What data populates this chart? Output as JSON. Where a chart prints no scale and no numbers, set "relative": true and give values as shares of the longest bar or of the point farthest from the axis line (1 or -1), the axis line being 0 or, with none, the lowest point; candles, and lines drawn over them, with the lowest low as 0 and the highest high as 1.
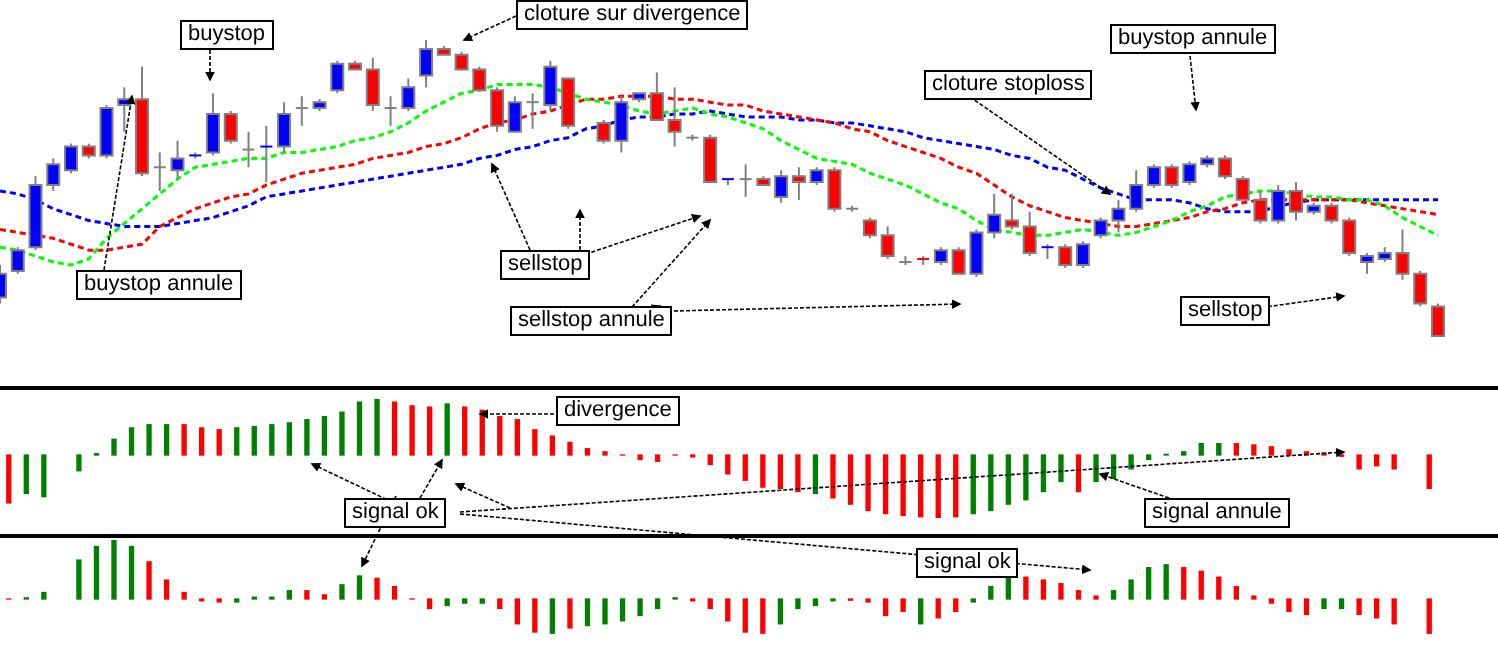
{
  "chart_data": [
    {
      "type": "candlestick",
      "relative": true,
      "line_style": "dashed",
      "categories": [
        null,
        null,
        null,
        null,
        null,
        null,
        null,
        null,
        null,
        null,
        null,
        null,
        null,
        null,
        null,
        null,
        null,
        null,
        null,
        null,
        null,
        null,
        null,
        null,
        null,
        null,
        null,
        null,
        null,
        null,
        null,
        null,
        null,
        null,
        null,
        null,
        null,
        null,
        null,
        null,
        null,
        null,
        null,
        null,
        null,
        null,
        null,
        null,
        null,
        null,
        null,
        null,
        null,
        null,
        null,
        null,
        null,
        null,
        null,
        null,
        null,
        null,
        null,
        null,
        null,
        null,
        null,
        null,
        null,
        null,
        null,
        null,
        null,
        null,
        null,
        null,
        null,
        null,
        null,
        null,
        null,
        null
      ],
      "ohlc": [
        [
          0.13,
          0.24,
          0.11,
          0.21
        ],
        [
          0.22,
          0.3,
          0.21,
          0.29
        ],
        [
          0.3,
          0.54,
          0.29,
          0.51
        ],
        [
          0.51,
          0.6,
          0.49,
          0.58
        ],
        [
          0.56,
          0.65,
          0.55,
          0.64
        ],
        [
          0.64,
          0.65,
          0.6,
          0.61
        ],
        [
          0.61,
          0.78,
          0.6,
          0.77
        ],
        [
          0.78,
          0.84,
          0.69,
          0.8
        ],
        [
          0.8,
          0.91,
          0.54,
          0.55
        ],
        [
          0.57,
          0.62,
          0.49,
          0.57
        ],
        [
          0.56,
          0.66,
          0.53,
          0.6
        ],
        [
          0.6,
          0.62,
          0.6,
          0.61
        ],
        [
          0.62,
          0.82,
          0.61,
          0.75
        ],
        [
          0.75,
          0.76,
          0.65,
          0.66
        ],
        [
          0.62,
          0.69,
          0.57,
          0.63
        ],
        [
          0.63,
          0.71,
          0.52,
          0.64
        ],
        [
          0.64,
          0.79,
          0.62,
          0.75
        ],
        [
          0.76,
          0.81,
          0.71,
          0.77
        ],
        [
          0.77,
          0.8,
          0.76,
          0.79
        ],
        [
          0.83,
          0.93,
          0.82,
          0.92
        ],
        [
          0.92,
          0.93,
          0.9,
          0.9
        ],
        [
          0.9,
          0.94,
          0.76,
          0.78
        ],
        [
          0.76,
          0.81,
          0.71,
          0.77
        ],
        [
          0.77,
          0.87,
          0.76,
          0.84
        ],
        [
          0.88,
          1,
          0.84,
          0.97
        ],
        [
          0.97,
          0.98,
          0.95,
          0.95
        ],
        [
          0.95,
          0.96,
          0.9,
          0.9
        ],
        [
          0.9,
          0.91,
          0.83,
          0.83
        ],
        [
          0.83,
          0.84,
          0.69,
          0.71
        ],
        [
          0.69,
          0.81,
          0.69,
          0.79
        ],
        [
          0.78,
          0.82,
          0.7,
          0.79
        ],
        [
          0.78,
          0.93,
          0.76,
          0.91
        ],
        [
          0.87,
          0.87,
          0.7,
          0.71
        ],
        null,
        [
          0.72,
          0.73,
          0.65,
          0.66
        ],
        [
          0.66,
          0.81,
          0.62,
          0.79
        ],
        [
          0.8,
          0.82,
          0.79,
          0.82
        ],
        [
          0.82,
          0.89,
          0.73,
          0.73
        ],
        [
          0.73,
          0.84,
          0.64,
          0.69
        ],
        [
          0.67,
          0.68,
          0.66,
          0.67
        ],
        [
          0.67,
          0.68,
          0.52,
          0.52
        ],
        [
          0.52,
          0.53,
          0.51,
          0.53
        ],
        [
          0.53,
          0.58,
          0.47,
          0.53
        ],
        [
          0.53,
          0.54,
          0.51,
          0.51
        ],
        [
          0.47,
          0.56,
          0.45,
          0.54
        ],
        [
          0.54,
          0.57,
          0.46,
          0.52
        ],
        [
          0.52,
          0.57,
          0.51,
          0.56
        ],
        [
          0.56,
          0.57,
          0.42,
          0.43
        ],
        [
          0.43,
          0.44,
          0.42,
          0.43
        ],
        [
          0.39,
          0.4,
          0.33,
          0.34
        ],
        [
          0.34,
          0.37,
          0.26,
          0.27
        ],
        [
          0.25,
          0.27,
          0.24,
          0.25
        ],
        [
          0.26,
          0.27,
          0.24,
          0.25
        ],
        [
          0.25,
          0.3,
          0.24,
          0.29
        ],
        [
          0.29,
          0.3,
          0.21,
          0.21
        ],
        [
          0.21,
          0.36,
          0.2,
          0.35
        ],
        [
          0.35,
          0.48,
          0.33,
          0.41
        ],
        [
          0.39,
          0.48,
          0.36,
          0.37
        ],
        [
          0.37,
          0.42,
          0.27,
          0.28
        ],
        [
          0.29,
          0.31,
          0.26,
          0.3
        ],
        [
          0.3,
          0.31,
          0.23,
          0.24
        ],
        [
          0.24,
          0.32,
          0.23,
          0.31
        ],
        [
          0.34,
          0.4,
          0.33,
          0.39
        ],
        [
          0.39,
          0.46,
          0.35,
          0.43
        ],
        [
          0.43,
          0.56,
          0.42,
          0.51
        ],
        [
          0.51,
          0.58,
          0.5,
          0.57
        ],
        [
          0.57,
          0.58,
          0.5,
          0.51
        ],
        [
          0.52,
          0.59,
          0.51,
          0.58
        ],
        [
          0.58,
          0.61,
          0.57,
          0.6
        ],
        [
          0.6,
          0.61,
          0.53,
          0.54
        ],
        [
          0.53,
          0.54,
          0.46,
          0.46
        ],
        [
          0.46,
          0.49,
          0.38,
          0.39
        ],
        [
          0.39,
          0.51,
          0.38,
          0.49
        ],
        [
          0.49,
          0.52,
          0.39,
          0.42
        ],
        [
          0.42,
          0.45,
          0.41,
          0.44
        ],
        [
          0.44,
          0.45,
          0.38,
          0.39
        ],
        [
          0.39,
          0.4,
          0.27,
          0.28
        ],
        [
          0.25,
          0.28,
          0.21,
          0.27
        ],
        [
          0.26,
          0.3,
          0.25,
          0.28
        ],
        [
          0.28,
          0.36,
          0.19,
          0.21
        ],
        [
          0.21,
          0.22,
          0.1,
          0.11
        ],
        [
          0.1,
          0.11,
          0,
          0
        ]
      ],
      "colors": [
        "#0000ff",
        "#0000ff",
        "#0000ff",
        "#0000ff",
        "#0000ff",
        "#ff0000",
        "#0000ff",
        "#0000ff",
        "#ff0000",
        "#808080",
        "#0000ff",
        "#0000ff",
        "#0000ff",
        "#ff0000",
        "#808080",
        "#0000ff",
        "#0000ff",
        "#808080",
        "#0000ff",
        "#0000ff",
        "#ff0000",
        "#ff0000",
        "#808080",
        "#0000ff",
        "#0000ff",
        "#ff0000",
        "#ff0000",
        "#ff0000",
        "#ff0000",
        "#0000ff",
        "#808080",
        "#0000ff",
        "#ff0000",
        null,
        "#ff0000",
        "#0000ff",
        "#0000ff",
        "#ff0000",
        "#ff0000",
        "#808080",
        "#ff0000",
        "#0000ff",
        "#808080",
        "#ff0000",
        "#0000ff",
        "#ff0000",
        "#0000ff",
        "#ff0000",
        "#808080",
        "#ff0000",
        "#ff0000",
        "#808080",
        "#ff0000",
        "#0000ff",
        "#ff0000",
        "#0000ff",
        "#0000ff",
        "#ff0000",
        "#ff0000",
        "#0000ff",
        "#ff0000",
        "#0000ff",
        "#0000ff",
        "#0000ff",
        "#0000ff",
        "#0000ff",
        "#ff0000",
        "#0000ff",
        "#0000ff",
        "#ff0000",
        "#ff0000",
        "#ff0000",
        "#0000ff",
        "#ff0000",
        "#0000ff",
        "#ff0000",
        "#ff0000",
        "#0000ff",
        "#0000ff",
        "#ff0000",
        "#ff0000",
        "#ff0000"
      ],
      "series": [
        {
          "type": "line",
          "color": "#00ff00",
          "values": [
            0.3,
            0.29,
            0.27,
            0.25,
            0.24,
            0.26,
            0.33,
            0.38,
            0.43,
            0.48,
            0.53,
            0.57,
            0.58,
            0.59,
            0.6,
            0.6,
            0.62,
            0.62,
            0.63,
            0.64,
            0.66,
            0.67,
            0.69,
            0.72,
            0.76,
            0.79,
            0.82,
            0.83,
            0.85,
            0.85,
            0.85,
            0.84,
            0.82,
            0.8,
            0.79,
            0.78,
            0.76,
            0.75,
            0.76,
            0.77,
            0.75,
            0.74,
            0.72,
            0.7,
            0.66,
            0.63,
            0.6,
            0.59,
            0.58,
            0.55,
            0.53,
            0.51,
            0.48,
            0.45,
            0.43,
            0.39,
            0.36,
            0.35,
            0.34,
            0.34,
            0.35,
            0.36,
            0.35,
            0.34,
            0.35,
            0.37,
            0.39,
            0.42,
            0.44,
            0.47,
            0.48,
            0.49,
            0.49,
            0.48,
            0.47,
            0.47,
            0.46,
            0.46,
            0.44,
            0.4,
            0.37,
            0.34
          ]
        },
        {
          "type": "line",
          "color": "#ff0000",
          "values": [
            0.36,
            0.35,
            0.34,
            0.33,
            0.31,
            0.29,
            0.29,
            0.3,
            0.31,
            0.37,
            0.4,
            0.43,
            0.45,
            0.47,
            0.48,
            0.51,
            0.53,
            0.55,
            0.56,
            0.57,
            0.58,
            0.6,
            0.61,
            0.62,
            0.64,
            0.65,
            0.67,
            0.7,
            0.72,
            0.73,
            0.75,
            0.76,
            0.78,
            0.8,
            0.8,
            0.81,
            0.81,
            0.81,
            0.8,
            0.8,
            0.79,
            0.78,
            0.78,
            0.76,
            0.75,
            0.74,
            0.73,
            0.72,
            0.7,
            0.69,
            0.66,
            0.64,
            0.62,
            0.6,
            0.57,
            0.55,
            0.51,
            0.47,
            0.44,
            0.42,
            0.4,
            0.39,
            0.38,
            0.37,
            0.37,
            0.38,
            0.39,
            0.4,
            0.42,
            0.43,
            0.45,
            0.46,
            0.46,
            0.46,
            0.46,
            0.46,
            0.46,
            0.45,
            0.44,
            0.43,
            0.42,
            0.41
          ]
        },
        {
          "type": "line",
          "color": "#0000ff",
          "values": [
            0.49,
            0.48,
            0.46,
            0.43,
            0.41,
            0.39,
            0.38,
            0.37,
            0.37,
            0.37,
            0.38,
            0.39,
            0.4,
            0.42,
            0.44,
            0.47,
            0.48,
            0.49,
            0.5,
            0.51,
            0.52,
            0.53,
            0.54,
            0.55,
            0.56,
            0.57,
            0.58,
            0.6,
            0.61,
            0.63,
            0.64,
            0.66,
            0.67,
            0.7,
            0.71,
            0.73,
            0.74,
            0.74,
            0.75,
            0.75,
            0.76,
            0.75,
            0.74,
            0.74,
            0.74,
            0.73,
            0.73,
            0.72,
            0.72,
            0.71,
            0.7,
            0.69,
            0.67,
            0.66,
            0.65,
            0.64,
            0.63,
            0.61,
            0.6,
            0.57,
            0.56,
            0.53,
            0.5,
            0.48,
            0.46,
            0.46,
            0.46,
            0.45,
            0.43,
            0.42,
            0.42,
            0.42,
            0.44,
            0.45,
            0.46,
            0.46,
            0.46,
            0.46,
            0.46,
            0.46,
            0.46,
            0.46
          ]
        }
      ],
      "annotations": [
        "buystop",
        "buystop annule",
        "cloture sur divergence",
        "sellstop",
        "sellstop annule",
        "buystop annule",
        "cloture stoploss",
        "sellstop"
      ]
    },
    {
      "type": "bar",
      "relative": true,
      "categories": [
        null,
        null,
        null,
        null,
        null,
        null,
        null,
        null,
        null,
        null,
        null,
        null,
        null,
        null,
        null,
        null,
        null,
        null,
        null,
        null,
        null,
        null,
        null,
        null,
        null,
        null,
        null,
        null,
        null,
        null,
        null,
        null,
        null,
        null,
        null,
        null,
        null,
        null,
        null,
        null,
        null,
        null,
        null,
        null,
        null,
        null,
        null,
        null,
        null,
        null,
        null,
        null,
        null,
        null,
        null,
        null,
        null,
        null,
        null,
        null,
        null,
        null,
        null,
        null,
        null,
        null,
        null,
        null,
        null,
        null,
        null,
        null,
        null,
        null,
        null,
        null,
        null,
        null,
        null,
        null,
        null,
        null
      ],
      "values": [
        -0.76,
        -0.61,
        -0.66,
        null,
        -0.25,
        0.02,
        0.25,
        0.43,
        0.48,
        0.48,
        0.48,
        0.43,
        0.4,
        0.43,
        0.45,
        0.48,
        0.51,
        0.56,
        0.61,
        0.68,
        0.84,
        0.88,
        0.84,
        0.78,
        0.76,
        0.81,
        0.76,
        0.71,
        0.61,
        0.56,
        0.4,
        0.3,
        0.2,
        0.1,
        0.05,
        0,
        -0.07,
        -0.1,
        0,
        -0.03,
        -0.15,
        -0.3,
        -0.4,
        -0.51,
        -0.53,
        -0.58,
        -0.61,
        -0.68,
        -0.78,
        -0.88,
        -0.93,
        -0.96,
        -0.98,
        -1,
        -0.98,
        -0.93,
        -0.88,
        -0.78,
        -0.71,
        -0.58,
        -0.42,
        -0.58,
        -0.42,
        -0.37,
        -0.22,
        -0.07,
        0.01,
        0.05,
        0.18,
        0.18,
        0.18,
        0.16,
        0.13,
        0.08,
        0.05,
        0.03,
        -0.02,
        -0.22,
        -0.17,
        -0.22,
        null,
        -0.53
      ],
      "colors": [
        "#ff0000",
        "#008000",
        "#008000",
        null,
        "#008000",
        "#008000",
        "#008000",
        "#008000",
        "#008000",
        "#008000",
        "#ff0000",
        "#ff0000",
        "#ff0000",
        "#008000",
        "#008000",
        "#008000",
        "#008000",
        "#008000",
        "#008000",
        "#008000",
        "#008000",
        "#008000",
        "#ff0000",
        "#ff0000",
        "#ff0000",
        "#008000",
        "#ff0000",
        "#ff0000",
        "#ff0000",
        "#ff0000",
        "#ff0000",
        "#ff0000",
        "#ff0000",
        "#ff0000",
        "#ff0000",
        "#ff0000",
        "#ff0000",
        "#ff0000",
        "#ff0000",
        "#ff0000",
        "#ff0000",
        "#ff0000",
        "#ff0000",
        "#ff0000",
        "#ff0000",
        "#ff0000",
        "#008000",
        "#ff0000",
        "#ff0000",
        "#ff0000",
        "#ff0000",
        "#ff0000",
        "#ff0000",
        "#ff0000",
        "#ff0000",
        "#008000",
        "#008000",
        "#008000",
        "#008000",
        "#008000",
        "#008000",
        "#ff0000",
        "#008000",
        "#008000",
        "#008000",
        "#008000",
        "#008000",
        "#008000",
        "#008000",
        "#008000",
        "#ff0000",
        "#ff0000",
        "#ff0000",
        "#ff0000",
        "#ff0000",
        "#ff0000",
        "#ff0000",
        "#ff0000",
        "#ff0000",
        "#ff0000",
        null,
        "#ff0000"
      ],
      "annotations": [
        "divergence",
        "signal ok",
        "signal annule"
      ]
    },
    {
      "type": "bar",
      "relative": true,
      "categories": [
        null,
        null,
        null,
        null,
        null,
        null,
        null,
        null,
        null,
        null,
        null,
        null,
        null,
        null,
        null,
        null,
        null,
        null,
        null,
        null,
        null,
        null,
        null,
        null,
        null,
        null,
        null,
        null,
        null,
        null,
        null,
        null,
        null,
        null,
        null,
        null,
        null,
        null,
        null,
        null,
        null,
        null,
        null,
        null,
        null,
        null,
        null,
        null,
        null,
        null,
        null,
        null,
        null,
        null,
        null,
        null,
        null,
        null,
        null,
        null,
        null,
        null,
        null,
        null,
        null,
        null,
        null,
        null,
        null,
        null,
        null,
        null,
        null,
        null,
        null,
        null,
        null,
        null,
        null,
        null,
        null,
        null
      ],
      "values": [
        0,
        0.02,
        0.11,
        null,
        0.66,
        0.89,
        1,
        0.89,
        0.63,
        0.32,
        0.11,
        -0.03,
        -0.05,
        -0.05,
        0.03,
        0.03,
        0.14,
        0.14,
        0.07,
        0.24,
        0.39,
        0.35,
        0.21,
        0,
        -0.16,
        -0.11,
        -0.07,
        -0.07,
        -0.16,
        -0.42,
        -0.56,
        -0.58,
        -0.49,
        -0.45,
        -0.42,
        -0.37,
        -0.28,
        -0.16,
        0.02,
        -0.03,
        -0.16,
        -0.37,
        -0.56,
        -0.58,
        -0.42,
        -0.16,
        -0.11,
        -0.03,
        -0.02,
        -0.05,
        -0.28,
        -0.21,
        -0.42,
        -0.32,
        -0.21,
        -0.05,
        0.21,
        0.37,
        0.37,
        0.32,
        0.26,
        0.14,
        0.05,
        0.14,
        0.32,
        0.53,
        0.58,
        0.53,
        0.47,
        0.37,
        0.21,
        0.05,
        -0.07,
        -0.21,
        -0.26,
        -0.16,
        -0.16,
        -0.26,
        -0.32,
        -0.42,
        null,
        -0.58
      ],
      "colors": [
        "#ff0000",
        "#008000",
        "#008000",
        null,
        "#008000",
        "#008000",
        "#008000",
        "#008000",
        "#ff0000",
        "#ff0000",
        "#ff0000",
        "#ff0000",
        "#ff0000",
        "#008000",
        "#008000",
        "#008000",
        "#008000",
        "#ff0000",
        "#ff0000",
        "#008000",
        "#008000",
        "#ff0000",
        "#ff0000",
        "#ff0000",
        "#ff0000",
        "#008000",
        "#008000",
        "#008000",
        "#ff0000",
        "#ff0000",
        "#ff0000",
        "#008000",
        "#ff0000",
        "#008000",
        "#008000",
        "#008000",
        "#008000",
        "#008000",
        "#008000",
        "#ff0000",
        "#ff0000",
        "#ff0000",
        "#ff0000",
        "#ff0000",
        "#008000",
        "#008000",
        "#008000",
        "#008000",
        "#ff0000",
        "#ff0000",
        "#ff0000",
        "#ff0000",
        "#008000",
        "#ff0000",
        "#ff0000",
        "#008000",
        "#008000",
        "#008000",
        "#ff0000",
        "#ff0000",
        "#ff0000",
        "#ff0000",
        "#ff0000",
        "#008000",
        "#008000",
        "#008000",
        "#008000",
        "#ff0000",
        "#ff0000",
        "#ff0000",
        "#ff0000",
        "#ff0000",
        "#ff0000",
        "#ff0000",
        "#ff0000",
        "#008000",
        "#008000",
        "#ff0000",
        "#ff0000",
        "#ff0000",
        null,
        "#ff0000"
      ],
      "annotations": [
        "signal ok"
      ]
    }
  ]
}
